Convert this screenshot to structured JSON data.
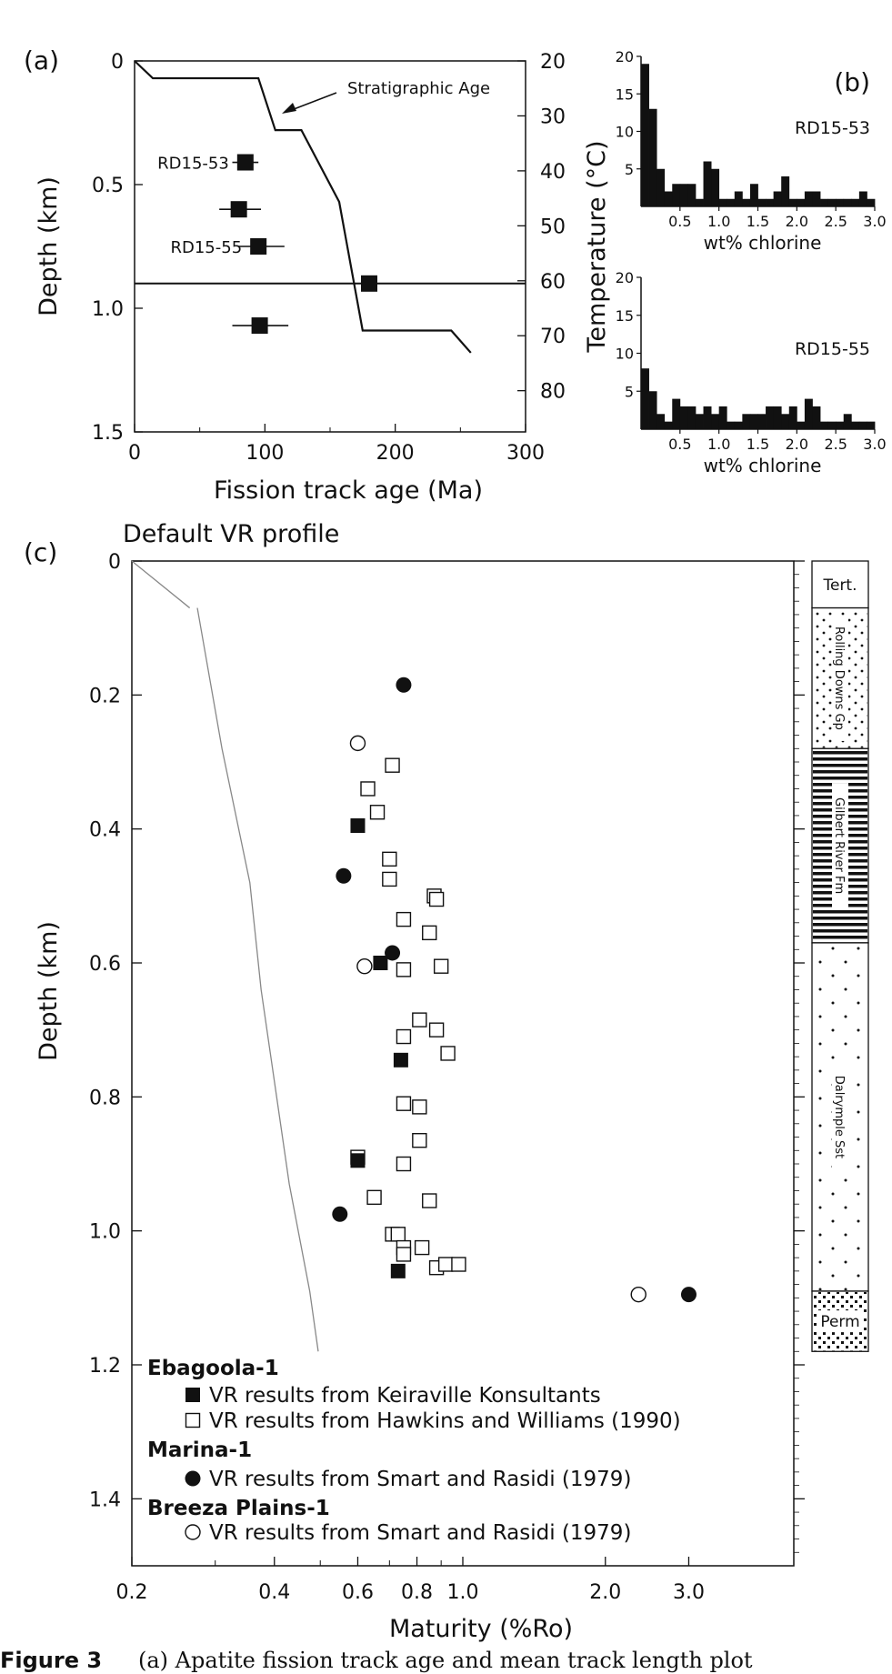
{
  "caption": {
    "label": "Figure 3",
    "text": "(a) Apatite fission track age and mean track length plot"
  },
  "chart_data": [
    {
      "id": "a",
      "panel_label": "(a)",
      "type": "scatter",
      "xlabel": "Fission track age (Ma)",
      "ylabel": "Depth (km)",
      "y2label": "Temperature (°C)",
      "xlim": [
        0,
        300
      ],
      "ylim": [
        0,
        1.5
      ],
      "y_inverted": true,
      "xticks": [
        0,
        100,
        200,
        300
      ],
      "yticks": [
        "0",
        "0.5",
        "1.0",
        "1.5"
      ],
      "yticks_values": [
        0,
        0.5,
        1.0,
        1.5
      ],
      "y2lim": [
        20,
        87.5
      ],
      "y2ticks": [
        20,
        30,
        40,
        50,
        60,
        70,
        80
      ],
      "points": [
        {
          "age": 85,
          "depth": 0.41,
          "err_lo": 75,
          "err_hi": 95,
          "label": "RD15-53"
        },
        {
          "age": 80,
          "depth": 0.6,
          "err_lo": 65,
          "err_hi": 97,
          "label": ""
        },
        {
          "age": 95,
          "depth": 0.75,
          "err_lo": 80,
          "err_hi": 115,
          "label": "RD15-55"
        },
        {
          "age": 180,
          "depth": 0.9,
          "err_lo": 180,
          "err_hi": 180,
          "label": ""
        },
        {
          "age": 96,
          "depth": 1.07,
          "err_lo": 75,
          "err_hi": 118,
          "label": ""
        }
      ],
      "hline_depth": 0.9,
      "strat_age_line": [
        [
          0,
          0
        ],
        [
          14,
          0.07
        ],
        [
          95,
          0.07
        ],
        [
          108,
          0.28
        ],
        [
          128,
          0.28
        ],
        [
          157,
          0.57
        ],
        [
          175,
          1.09
        ],
        [
          243,
          1.09
        ],
        [
          258,
          1.18
        ]
      ],
      "annotation": "Stratigraphic Age"
    },
    {
      "id": "b1",
      "panel_label": "(b)",
      "type": "bar",
      "title": "RD15-53",
      "xlabel": "wt% chlorine",
      "xlim": [
        0,
        3.0
      ],
      "ylim": [
        0,
        20
      ],
      "xticks": [
        "0.5",
        "1.0",
        "1.5",
        "2.0",
        "2.5",
        "3.0"
      ],
      "yticks": [
        5,
        10,
        15,
        20
      ],
      "bin_width": 0.1,
      "values": [
        19,
        13,
        5,
        2,
        3,
        3,
        3,
        1,
        6,
        5,
        1,
        1,
        2,
        1,
        3,
        1,
        1,
        2,
        4,
        1,
        1,
        2,
        2,
        1,
        1,
        1,
        1,
        1,
        2,
        1
      ]
    },
    {
      "id": "b2",
      "type": "bar",
      "title": "RD15-55",
      "xlabel": "wt% chlorine",
      "xlim": [
        0,
        3.0
      ],
      "ylim": [
        0,
        20
      ],
      "xticks": [
        "0.5",
        "1.0",
        "1.5",
        "2.0",
        "2.5",
        "3.0"
      ],
      "yticks": [
        5,
        10,
        15,
        20
      ],
      "bin_width": 0.1,
      "values": [
        8,
        5,
        2,
        1,
        4,
        3,
        3,
        2,
        3,
        2,
        3,
        1,
        1,
        2,
        2,
        2,
        3,
        3,
        2,
        3,
        1,
        4,
        3,
        1,
        1,
        1,
        2,
        1,
        1,
        1
      ]
    },
    {
      "id": "c",
      "panel_label": "(c)",
      "type": "scatter",
      "title": "Default VR profile",
      "xlabel": "Maturity (%Ro)",
      "ylabel": "Depth (km)",
      "x_scale": "log",
      "xlim": [
        0.2,
        5.0
      ],
      "ylim": [
        0,
        1.5
      ],
      "y_inverted": true,
      "xticks": [
        "0.2",
        "0.4",
        "0.6",
        "0.8",
        "1.0",
        "2.0",
        "3.0"
      ],
      "xticks_values": [
        0.2,
        0.4,
        0.6,
        0.8,
        1.0,
        2.0,
        3.0
      ],
      "yticks": [
        "0",
        "0.2",
        "0.4",
        "0.6",
        "0.8",
        "1.0",
        "1.2",
        "1.4"
      ],
      "yticks_values": [
        0,
        0.2,
        0.4,
        0.6,
        0.8,
        1.0,
        1.2,
        1.4
      ],
      "default_profile": [
        [
          0.2,
          0.0
        ],
        [
          0.265,
          0.07
        ],
        [
          0.275,
          0.07
        ],
        [
          0.31,
          0.28
        ],
        [
          0.355,
          0.48
        ],
        [
          0.375,
          0.64
        ],
        [
          0.43,
          0.93
        ],
        [
          0.475,
          1.09
        ],
        [
          0.495,
          1.18
        ]
      ],
      "series": [
        {
          "name": "VR results from Keiraville Konsultants",
          "group": "Ebagoola-1",
          "marker": "filled-square",
          "points": [
            [
              0.6,
              0.395
            ],
            [
              0.67,
              0.6
            ],
            [
              0.74,
              0.745
            ],
            [
              0.6,
              0.895
            ],
            [
              0.73,
              1.06
            ]
          ]
        },
        {
          "name": "VR results from Hawkins and Williams (1990)",
          "group": "Ebagoola-1",
          "marker": "open-square",
          "points": [
            [
              0.71,
              0.305
            ],
            [
              0.63,
              0.34
            ],
            [
              0.66,
              0.375
            ],
            [
              0.7,
              0.445
            ],
            [
              0.7,
              0.475
            ],
            [
              0.87,
              0.5
            ],
            [
              0.88,
              0.505
            ],
            [
              0.75,
              0.535
            ],
            [
              0.85,
              0.555
            ],
            [
              0.75,
              0.61
            ],
            [
              0.9,
              0.605
            ],
            [
              0.81,
              0.685
            ],
            [
              0.75,
              0.71
            ],
            [
              0.88,
              0.7
            ],
            [
              0.93,
              0.735
            ],
            [
              0.75,
              0.81
            ],
            [
              0.81,
              0.815
            ],
            [
              0.81,
              0.865
            ],
            [
              0.75,
              0.9
            ],
            [
              0.6,
              0.89
            ],
            [
              0.85,
              0.955
            ],
            [
              0.65,
              0.95
            ],
            [
              0.71,
              1.005
            ],
            [
              0.73,
              1.005
            ],
            [
              0.75,
              1.025
            ],
            [
              0.75,
              1.035
            ],
            [
              0.82,
              1.025
            ],
            [
              0.88,
              1.055
            ],
            [
              0.92,
              1.05
            ],
            [
              0.98,
              1.05
            ]
          ]
        },
        {
          "name": "VR results from Smart and Rasidi (1979)",
          "group": "Marina-1",
          "marker": "filled-circle",
          "points": [
            [
              0.75,
              0.185
            ],
            [
              0.56,
              0.47
            ],
            [
              0.71,
              0.585
            ],
            [
              0.55,
              0.975
            ],
            [
              3.0,
              1.095
            ]
          ]
        },
        {
          "name": "VR results from Smart and Rasidi (1979)",
          "group": "Breeza Plains-1",
          "marker": "open-circle",
          "points": [
            [
              0.6,
              0.272
            ],
            [
              0.62,
              0.605
            ],
            [
              2.35,
              1.095
            ]
          ]
        }
      ],
      "legend_groups": [
        "Ebagoola-1",
        "Marina-1",
        "Breeza Plains-1"
      ],
      "legend": "bottom-left",
      "stratigraphy": [
        {
          "name": "Tert.",
          "top": 0.0,
          "bottom": 0.07,
          "pattern": "none"
        },
        {
          "name": "Rolling Downs Gp",
          "top": 0.07,
          "bottom": 0.28,
          "pattern": "dots-dense"
        },
        {
          "name": "Gilbert River Fm",
          "top": 0.28,
          "bottom": 0.57,
          "pattern": "stripes"
        },
        {
          "name": "Dalrymple Sst",
          "top": 0.57,
          "bottom": 1.09,
          "pattern": "dots-sparse"
        },
        {
          "name": "Perm",
          "top": 1.09,
          "bottom": 1.18,
          "pattern": "checker"
        }
      ]
    }
  ]
}
